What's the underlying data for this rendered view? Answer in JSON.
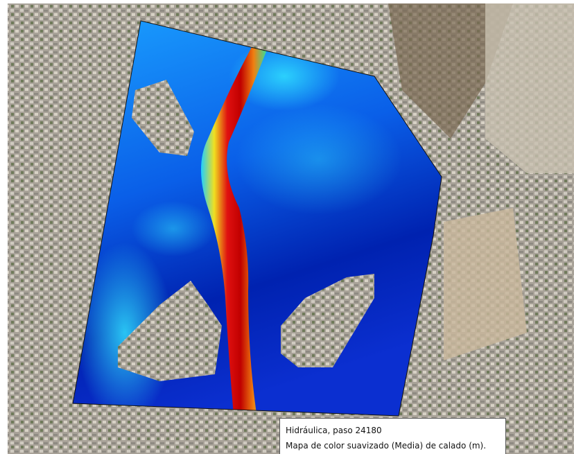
{
  "legend": {
    "title": "Hidráulica, paso 24180",
    "description": "Mapa de color suavizado (Media) de calado (m)."
  }
}
